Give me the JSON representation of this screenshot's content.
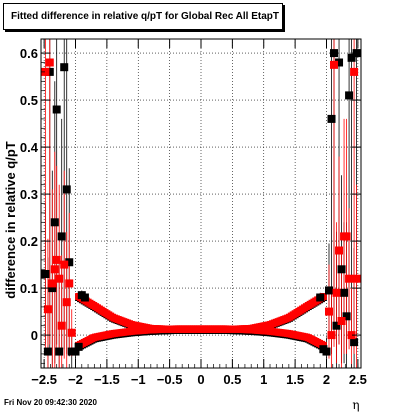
{
  "title": "Fitted difference in relative q/pT for Global Rec All EtapT",
  "timestamp": "Fri Nov 20 09:42:30 2020",
  "chart_data": {
    "type": "scatter",
    "xlabel": "η",
    "ylabel": "difference in relative q/pT",
    "xlim": [
      -2.55,
      2.55
    ],
    "ylim": [
      -0.07,
      0.63
    ],
    "x_ticks": [
      -2.5,
      -2,
      -1.5,
      -1,
      -0.5,
      0,
      0.5,
      1,
      1.5,
      2,
      2.5
    ],
    "x_tick_labels": [
      "−2.5",
      "−2",
      "−1.5",
      "−1",
      "−0.5",
      "0",
      "0.5",
      "1",
      "1.5",
      "2",
      "2.5"
    ],
    "y_ticks": [
      0,
      0.1,
      0.2,
      0.3,
      0.4,
      0.5,
      0.6
    ],
    "y_tick_labels": [
      "0",
      "0.1",
      "0.2",
      "0.3",
      "0.4",
      "0.5",
      "0.6"
    ],
    "grid": true,
    "colors": {
      "series_a": "#000000",
      "series_b": "#ff0000"
    },
    "series": [
      {
        "color": "#000000",
        "marker": "square",
        "points": [
          {
            "x": -2.48,
            "y": 0.13,
            "err": 0.15
          },
          {
            "x": -2.44,
            "y": -0.035,
            "err": 0.2
          },
          {
            "x": -2.41,
            "y": 0.56,
            "err": 0.6
          },
          {
            "x": -2.37,
            "y": 0.1,
            "err": 0.25
          },
          {
            "x": -2.33,
            "y": 0.24,
            "err": 0.3
          },
          {
            "x": -2.3,
            "y": 0.48,
            "err": 0.5
          },
          {
            "x": -2.26,
            "y": -0.035,
            "err": 0.2
          },
          {
            "x": -2.22,
            "y": 0.21,
            "err": 0.25
          },
          {
            "x": -2.18,
            "y": 0.57,
            "err": 0.6
          },
          {
            "x": -2.14,
            "y": 0.31,
            "err": 0.35
          },
          {
            "x": -2.1,
            "y": 0.155,
            "err": 0.2
          },
          {
            "x": -2.06,
            "y": -0.035,
            "err": 0.05
          },
          {
            "x": -2.0,
            "y": -0.035,
            "err": 0.02
          },
          {
            "x": -1.95,
            "y": -0.025,
            "err": 0.01
          },
          {
            "x": -1.9,
            "y": 0.085,
            "err": 0.01
          },
          {
            "x": -1.85,
            "y": 0.08,
            "err": 0.01
          },
          {
            "x": 1.9,
            "y": 0.08,
            "err": 0.01
          },
          {
            "x": 1.95,
            "y": -0.03,
            "err": 0.01
          },
          {
            "x": 2.0,
            "y": -0.035,
            "err": 0.03
          },
          {
            "x": 2.04,
            "y": 0.095,
            "err": 0.1
          },
          {
            "x": 2.08,
            "y": 0.46,
            "err": 0.5
          },
          {
            "x": 2.12,
            "y": 0.6,
            "err": 0.6
          },
          {
            "x": 2.16,
            "y": 0.02,
            "err": 0.2
          },
          {
            "x": 2.2,
            "y": 0.58,
            "err": 0.6
          },
          {
            "x": 2.24,
            "y": 0.14,
            "err": 0.2
          },
          {
            "x": 2.28,
            "y": 0.09,
            "err": 0.15
          },
          {
            "x": 2.32,
            "y": 0.04,
            "err": 0.2
          },
          {
            "x": 2.36,
            "y": 0.51,
            "err": 0.5
          },
          {
            "x": 2.4,
            "y": 0.59,
            "err": 0.6
          },
          {
            "x": 2.44,
            "y": -0.015,
            "err": 0.2
          },
          {
            "x": 2.48,
            "y": 0.6,
            "err": 0.6
          }
        ]
      },
      {
        "color": "#ff0000",
        "marker": "square",
        "points": [
          {
            "x": -2.48,
            "y": 0.56,
            "err": 0.6
          },
          {
            "x": -2.44,
            "y": 0.055,
            "err": 0.15
          },
          {
            "x": -2.41,
            "y": 0.58,
            "err": 0.6
          },
          {
            "x": -2.37,
            "y": 0.11,
            "err": 0.2
          },
          {
            "x": -2.33,
            "y": 0.14,
            "err": 0.25
          },
          {
            "x": -2.3,
            "y": 0.16,
            "err": 0.2
          },
          {
            "x": -2.26,
            "y": 0.12,
            "err": 0.2
          },
          {
            "x": -2.22,
            "y": 0.02,
            "err": 0.15
          },
          {
            "x": -2.18,
            "y": 0.15,
            "err": 0.2
          },
          {
            "x": -2.14,
            "y": 0.07,
            "err": 0.15
          },
          {
            "x": -2.1,
            "y": 0.11,
            "err": 0.15
          },
          {
            "x": -2.06,
            "y": 0.005,
            "err": 0.05
          },
          {
            "x": 2.04,
            "y": 0.05,
            "err": 0.1
          },
          {
            "x": 2.08,
            "y": 0.0,
            "err": 0.1
          },
          {
            "x": 2.12,
            "y": 0.575,
            "err": 0.6
          },
          {
            "x": 2.16,
            "y": 0.09,
            "err": 0.15
          },
          {
            "x": 2.2,
            "y": 0.18,
            "err": 0.2
          },
          {
            "x": 2.24,
            "y": 0.03,
            "err": 0.15
          },
          {
            "x": 2.28,
            "y": 0.21,
            "err": 0.25
          },
          {
            "x": 2.32,
            "y": 0.21,
            "err": 0.25
          },
          {
            "x": 2.36,
            "y": 0.12,
            "err": 0.15
          },
          {
            "x": 2.4,
            "y": 0.0,
            "err": 0.1
          },
          {
            "x": 2.44,
            "y": 0.56,
            "err": 0.6
          },
          {
            "x": 2.48,
            "y": 0.12,
            "err": 0.2
          }
        ]
      }
    ],
    "curve_band": {
      "upper": [
        [
          -1.95,
          0.08
        ],
        [
          -1.7,
          0.06
        ],
        [
          -1.4,
          0.035
        ],
        [
          -1.1,
          0.02
        ],
        [
          -0.8,
          0.012
        ],
        [
          -0.4,
          0.01
        ],
        [
          0.0,
          0.01
        ],
        [
          0.4,
          0.01
        ],
        [
          0.8,
          0.012
        ],
        [
          1.1,
          0.02
        ],
        [
          1.4,
          0.035
        ],
        [
          1.7,
          0.06
        ],
        [
          1.95,
          0.08
        ]
      ],
      "lower": [
        [
          -1.95,
          -0.025
        ],
        [
          -1.7,
          -0.008
        ],
        [
          -1.4,
          0.0
        ],
        [
          -1.1,
          0.005
        ],
        [
          -0.8,
          0.008
        ],
        [
          -0.4,
          0.01
        ],
        [
          0.0,
          0.01
        ],
        [
          0.4,
          0.01
        ],
        [
          0.8,
          0.008
        ],
        [
          1.1,
          0.005
        ],
        [
          1.4,
          0.0
        ],
        [
          1.7,
          -0.008
        ],
        [
          1.95,
          -0.025
        ]
      ]
    }
  }
}
